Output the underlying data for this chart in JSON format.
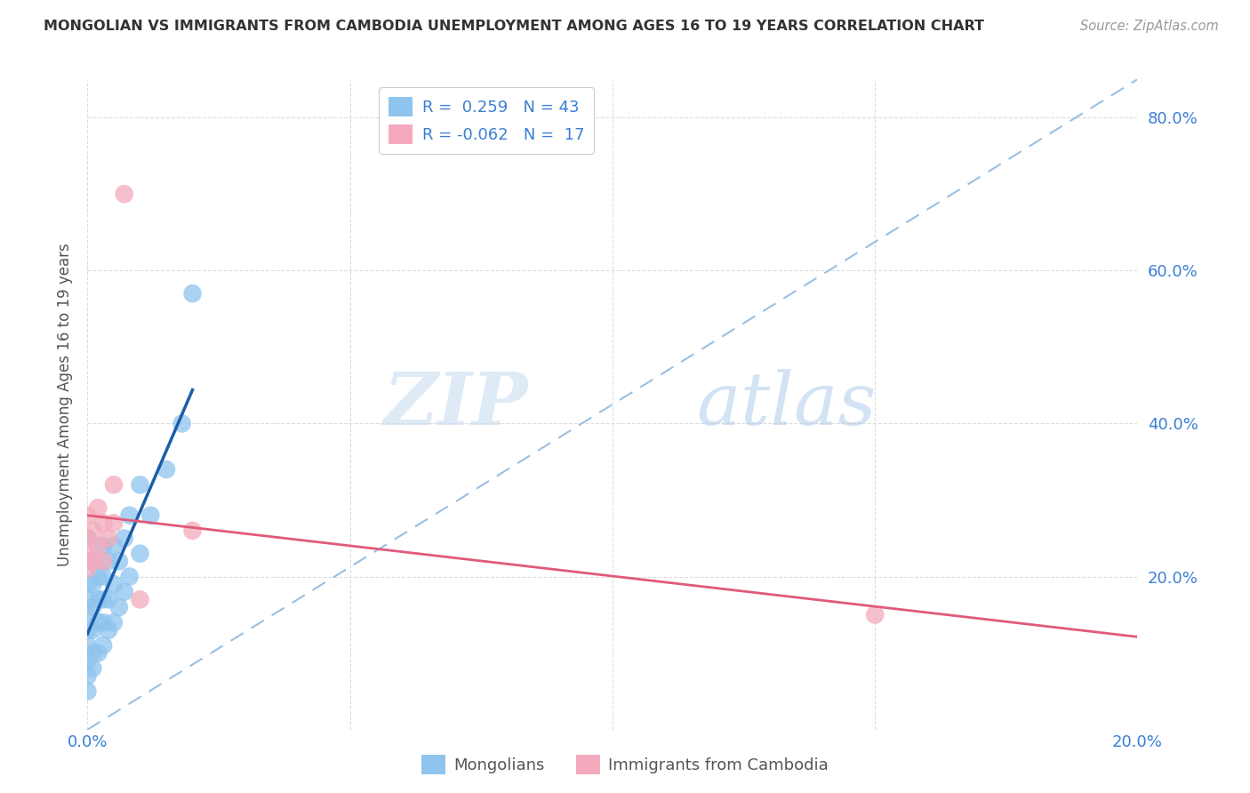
{
  "title": "MONGOLIAN VS IMMIGRANTS FROM CAMBODIA UNEMPLOYMENT AMONG AGES 16 TO 19 YEARS CORRELATION CHART",
  "source": "Source: ZipAtlas.com",
  "ylabel": "Unemployment Among Ages 16 to 19 years",
  "xmin": 0.0,
  "xmax": 0.2,
  "ymin": 0.0,
  "ymax": 0.85,
  "x_ticks": [
    0.0,
    0.05,
    0.1,
    0.15,
    0.2
  ],
  "x_tick_labels": [
    "0.0%",
    "",
    "",
    "",
    "20.0%"
  ],
  "y_ticks": [
    0.2,
    0.4,
    0.6,
    0.8
  ],
  "y_tick_labels": [
    "20.0%",
    "40.0%",
    "60.0%",
    "80.0%"
  ],
  "mongolian_color": "#8EC4EE",
  "cambodia_color": "#F4AABC",
  "trendline_mongolian_color": "#1B5EA8",
  "trendline_cambodia_color": "#E05A7A",
  "trendline_dashed_color": "#9BBFE0",
  "watermark_zip": "ZIP",
  "watermark_atlas": "atlas",
  "mongolian_x": [
    0.0,
    0.0,
    0.0,
    0.0,
    0.0,
    0.0,
    0.0,
    0.0,
    0.0,
    0.0,
    0.001,
    0.001,
    0.001,
    0.001,
    0.001,
    0.001,
    0.002,
    0.002,
    0.002,
    0.002,
    0.003,
    0.003,
    0.003,
    0.003,
    0.003,
    0.004,
    0.004,
    0.004,
    0.005,
    0.005,
    0.005,
    0.006,
    0.006,
    0.007,
    0.007,
    0.008,
    0.008,
    0.01,
    0.01,
    0.012,
    0.015,
    0.018,
    0.02
  ],
  "mongolian_y": [
    0.05,
    0.07,
    0.09,
    0.11,
    0.13,
    0.15,
    0.17,
    0.19,
    0.22,
    0.25,
    0.08,
    0.1,
    0.13,
    0.16,
    0.19,
    0.22,
    0.1,
    0.14,
    0.17,
    0.2,
    0.11,
    0.14,
    0.17,
    0.2,
    0.24,
    0.13,
    0.17,
    0.22,
    0.14,
    0.19,
    0.24,
    0.16,
    0.22,
    0.18,
    0.25,
    0.2,
    0.28,
    0.23,
    0.32,
    0.28,
    0.34,
    0.4,
    0.57
  ],
  "cambodia_x": [
    0.0,
    0.0,
    0.0,
    0.0,
    0.001,
    0.001,
    0.002,
    0.002,
    0.003,
    0.003,
    0.004,
    0.005,
    0.005,
    0.007,
    0.01,
    0.02,
    0.15
  ],
  "cambodia_y": [
    0.21,
    0.23,
    0.25,
    0.28,
    0.22,
    0.26,
    0.24,
    0.29,
    0.22,
    0.27,
    0.25,
    0.27,
    0.32,
    0.7,
    0.17,
    0.26,
    0.15
  ],
  "background_color": "#FFFFFF",
  "grid_color": "#DDDDDD"
}
